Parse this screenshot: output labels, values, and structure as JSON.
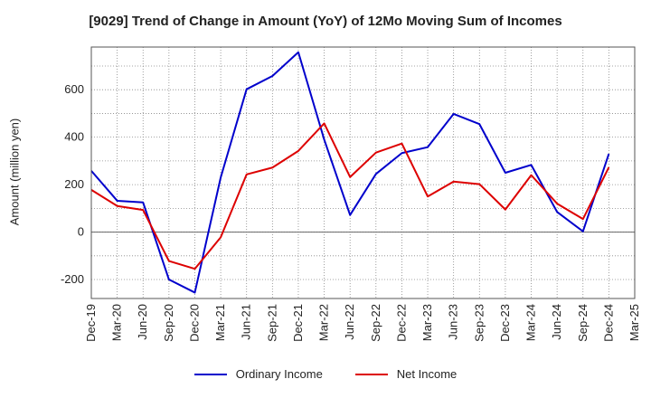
{
  "chart_data": {
    "type": "line",
    "title": "[9029]  Trend of Change in Amount (YoY) of 12Mo Moving Sum of Incomes",
    "xlabel": "",
    "ylabel": "Amount (million yen)",
    "ylim": [
      -280,
      780
    ],
    "yticks": [
      -200,
      0,
      200,
      400,
      600
    ],
    "grid": true,
    "legend_position": "bottom",
    "categories": [
      "Dec-19",
      "Mar-20",
      "Jun-20",
      "Sep-20",
      "Dec-20",
      "Mar-21",
      "Jun-21",
      "Sep-21",
      "Dec-21",
      "Mar-22",
      "Jun-22",
      "Sep-22",
      "Dec-22",
      "Mar-23",
      "Jun-23",
      "Sep-23",
      "Dec-23",
      "Mar-24",
      "Jun-24",
      "Sep-24",
      "Dec-24",
      "Mar-25"
    ],
    "series": [
      {
        "name": "Ordinary Income",
        "color": "#0000cc",
        "values": [
          258,
          132,
          125,
          -200,
          -255,
          230,
          602,
          658,
          758,
          390,
          72,
          245,
          333,
          358,
          498,
          455,
          250,
          283,
          85,
          3,
          330,
          null
        ]
      },
      {
        "name": "Net Income",
        "color": "#dd0000",
        "values": [
          178,
          110,
          93,
          -122,
          -155,
          -22,
          243,
          272,
          342,
          458,
          232,
          335,
          373,
          150,
          213,
          202,
          95,
          240,
          120,
          55,
          273,
          null
        ]
      }
    ]
  }
}
